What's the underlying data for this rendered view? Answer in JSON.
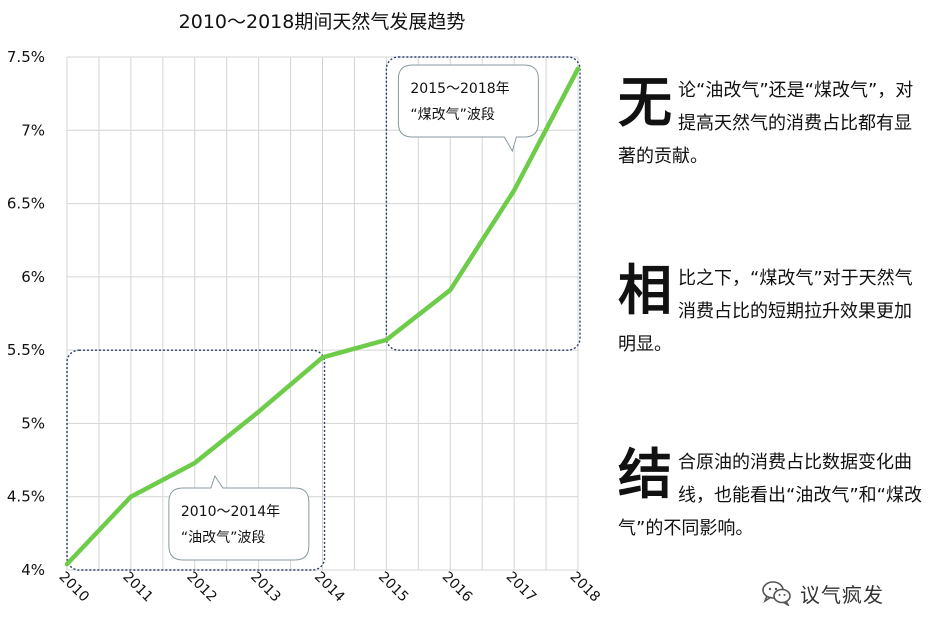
{
  "chart_data": {
    "type": "line",
    "title": "2010～2018期间天然气发展趋势",
    "x": [
      "2010",
      "2011",
      "2012",
      "2013",
      "2014",
      "2015",
      "2016",
      "2017",
      "2018"
    ],
    "series": [
      {
        "values": [
          4.04,
          4.5,
          4.73,
          5.08,
          5.45,
          5.57,
          5.91,
          6.59,
          7.42
        ],
        "color": "#6dcc4a"
      }
    ],
    "y_ticks": [
      "4%",
      "4.5%",
      "5%",
      "5.5%",
      "6%",
      "6.5%",
      "7%",
      "7.5%"
    ],
    "ylim": [
      4.0,
      7.5
    ],
    "grid": true,
    "annotations": [
      {
        "line1": "2010～2014年",
        "line2": "“油改气”波段",
        "range": [
          "2010",
          "2014"
        ],
        "yrange": [
          4.0,
          5.5
        ]
      },
      {
        "line1": "2015～2018年",
        "line2": "“煤改气”波段",
        "range": [
          "2015",
          "2018"
        ],
        "yrange": [
          5.5,
          7.5
        ]
      }
    ]
  },
  "text_blocks": [
    {
      "big": "无",
      "rest": "论“油改气”还是“煤改气”，对提高天然气的消费占比都有显著的贡献。"
    },
    {
      "big": "相",
      "rest": "比之下，“煤改气”对于天然气消费占比的短期拉升效果更加明显。"
    },
    {
      "big": "结",
      "rest": "合原油的消费占比数据变化曲线，也能看出“油改气”和“煤改气”的不同影响。"
    }
  ],
  "brand": {
    "icon": "wechat-icon",
    "text": "议气疯发"
  }
}
